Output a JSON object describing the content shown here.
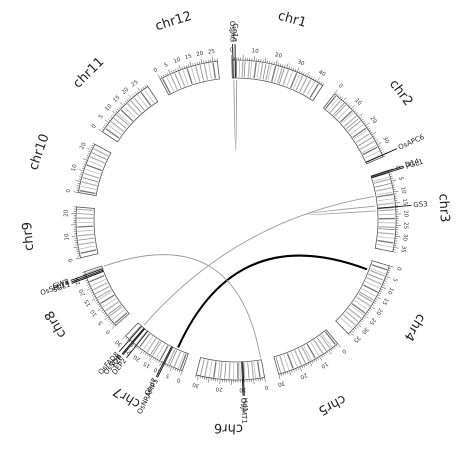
{
  "diagram": {
    "chromosomes": [
      {
        "name": "chr1",
        "length": 43,
        "ticks": [
          0,
          10,
          20,
          30,
          40
        ],
        "bands": [
          2,
          3.5,
          5,
          6,
          8,
          9,
          11,
          12.5,
          14,
          15.5,
          17,
          18,
          20,
          21.5,
          23,
          24,
          26,
          28,
          30,
          31.5,
          33,
          35,
          37,
          39,
          41
        ]
      },
      {
        "name": "chr2",
        "length": 36,
        "ticks": [
          0,
          10,
          20,
          30
        ],
        "bands": [
          1,
          2.5,
          4,
          6,
          7,
          9,
          11,
          12,
          14,
          15.5,
          17,
          19,
          21,
          22,
          24,
          26,
          28,
          30,
          31,
          33,
          35
        ]
      },
      {
        "name": "chr3",
        "length": 37,
        "ticks": [
          0,
          5,
          10,
          15,
          20,
          25,
          30,
          35
        ],
        "bands": [
          1,
          3,
          4,
          6,
          8,
          10,
          11,
          13,
          15,
          17,
          18,
          20,
          22,
          24,
          26,
          27,
          29,
          31,
          33,
          35
        ]
      },
      {
        "name": "chr4",
        "length": 36,
        "ticks": [
          0,
          5,
          10,
          15,
          20,
          25,
          30,
          35
        ],
        "bands": [
          2,
          4,
          5,
          7,
          9,
          11,
          13,
          15,
          17,
          18,
          20,
          22,
          24,
          25,
          27,
          29,
          31,
          33
        ]
      },
      {
        "name": "chr5",
        "length": 30,
        "ticks": [
          0,
          10,
          20,
          30
        ],
        "bands": [
          1,
          3,
          4,
          6,
          8,
          10,
          12,
          14,
          15,
          17,
          19,
          21,
          23,
          25,
          27,
          29
        ]
      },
      {
        "name": "chr6",
        "length": 31,
        "ticks": [
          0,
          10,
          20,
          30
        ],
        "bands": [
          2,
          4,
          5,
          7,
          9,
          11,
          12,
          14,
          16,
          18,
          20,
          21,
          23,
          25,
          27,
          29
        ]
      },
      {
        "name": "chr7",
        "length": 30,
        "ticks": [
          0,
          5,
          10,
          15,
          20,
          25,
          30
        ],
        "bands": [
          1,
          2,
          4,
          6,
          7,
          9,
          11,
          13,
          15,
          16,
          18,
          20,
          22,
          24,
          26,
          28
        ]
      },
      {
        "name": "chr8",
        "length": 28,
        "ticks": [
          0,
          5,
          10,
          15,
          20,
          25
        ],
        "bands": [
          1,
          3,
          5,
          6,
          8,
          10,
          12,
          14,
          15,
          17,
          19,
          21,
          23,
          25,
          27
        ]
      },
      {
        "name": "chr9",
        "length": 23,
        "ticks": [
          0,
          10,
          20
        ],
        "bands": [
          2,
          4,
          6,
          8,
          10,
          12,
          14,
          16,
          18,
          20,
          22
        ]
      },
      {
        "name": "chr10",
        "length": 23,
        "ticks": [
          0,
          10,
          20
        ],
        "bands": [
          1,
          3,
          5,
          7,
          9,
          11,
          13,
          15,
          17,
          19,
          21
        ]
      },
      {
        "name": "chr11",
        "length": 29,
        "ticks": [
          0,
          5,
          10,
          15,
          20,
          25
        ],
        "bands": [
          2,
          4,
          6,
          8,
          10,
          11,
          13,
          15,
          17,
          19,
          21,
          23,
          25,
          27
        ]
      },
      {
        "name": "chr12",
        "length": 27,
        "ticks": [
          0,
          5,
          10,
          15,
          20,
          25
        ],
        "bands": [
          1,
          3,
          5,
          7,
          9,
          11,
          13,
          15,
          17,
          19,
          21,
          23,
          25
        ]
      }
    ],
    "genes": [
      {
        "label": "OsJAG",
        "chr": 1,
        "pos": 0.5
      },
      {
        "label": "Gn1a",
        "chr": 1,
        "pos": 1.5
      },
      {
        "label": "OsAPC6",
        "chr": 2,
        "pos": 35.2
      },
      {
        "label": "D14",
        "chr": 3,
        "pos": 0.3
      },
      {
        "label": "PGL1",
        "chr": 3,
        "pos": 0.9
      },
      {
        "label": "GS3",
        "chr": 3,
        "pos": 16.7
      },
      {
        "label": "Hd1",
        "chr": 6,
        "pos": 9.5
      },
      {
        "label": "OsJMT1",
        "chr": 6,
        "pos": 10.0
      },
      {
        "label": "GW8",
        "chr": 8,
        "pos": 26.5
      },
      {
        "label": "OsSPL14",
        "chr": 8,
        "pos": 25.8
      },
      {
        "label": "SGL1",
        "chr": 8,
        "pos": 25.2
      },
      {
        "label": "OsSDR",
        "chr": 7,
        "pos": 26.0
      },
      {
        "label": "FZP",
        "chr": 7,
        "pos": 25.5
      },
      {
        "label": "DEP2",
        "chr": 7,
        "pos": 23.6
      },
      {
        "label": "OsFAD8",
        "chr": 7,
        "pos": 27.5
      },
      {
        "label": "Ghd7",
        "chr": 7,
        "pos": 9.2
      },
      {
        "label": "OsNRAMP5",
        "chr": 7,
        "pos": 8.6
      }
    ],
    "links": [
      {
        "a": 1,
        "pa": 0.8,
        "b": 1,
        "pb": 2.2,
        "weight": "thin"
      },
      {
        "a": 3,
        "pa": 15.5,
        "b": 3,
        "pb": 18.0,
        "weight": "thin"
      },
      {
        "a": 3,
        "pa": 10.5,
        "b": 7,
        "pb": 27.0,
        "weight": "thin"
      },
      {
        "a": 4,
        "pa": 5.0,
        "b": 7,
        "pb": 6.0,
        "weight": "thick"
      },
      {
        "a": 8,
        "pa": 27.5,
        "b": 6,
        "pb": 0.3,
        "weight": "thin"
      }
    ]
  }
}
